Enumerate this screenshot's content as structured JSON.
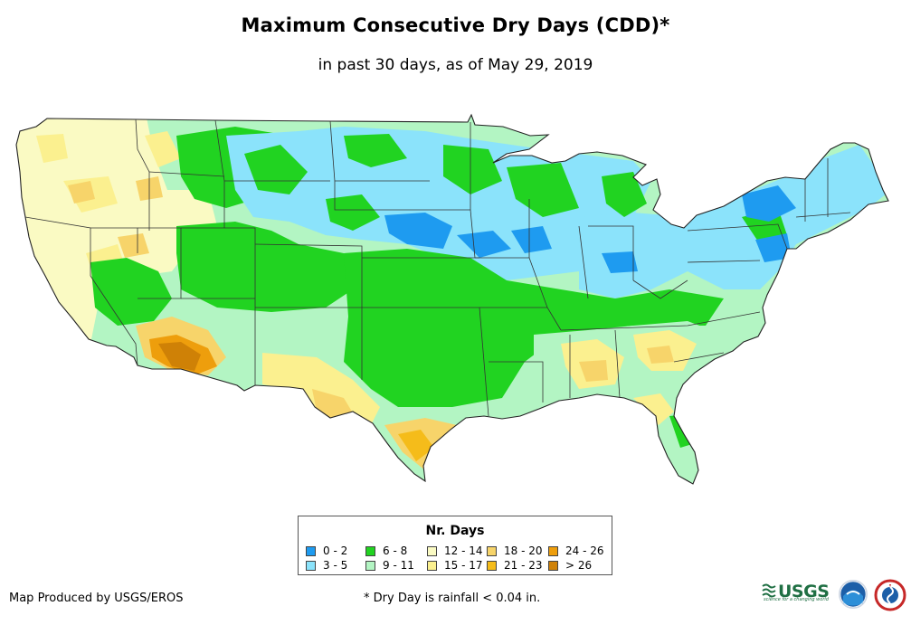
{
  "title": "Maximum Consecutive Dry Days (CDD)*",
  "subtitle": "in past 30 days, as of May 29, 2019",
  "legend": {
    "title": "Nr. Days",
    "items": [
      {
        "label": "0 - 2",
        "color": "#1e9bf0"
      },
      {
        "label": "3 - 5",
        "color": "#8be3fb"
      },
      {
        "label": "6 - 8",
        "color": "#21d321"
      },
      {
        "label": "9 - 11",
        "color": "#b3f5c3"
      },
      {
        "label": "12 - 14",
        "color": "#fafac3"
      },
      {
        "label": "15 - 17",
        "color": "#fbf08f"
      },
      {
        "label": "18 - 20",
        "color": "#f7d46a"
      },
      {
        "label": "21 - 23",
        "color": "#f5bc1a"
      },
      {
        "label": "24 - 26",
        "color": "#ee9e0c"
      },
      {
        "label": "> 26",
        "color": "#cf8106"
      }
    ]
  },
  "footer": {
    "credit": "Map Produced by USGS/EROS",
    "footnote": "* Dry Day is rainfall < 0.04 in."
  },
  "logos": {
    "usgs": "USGS",
    "usgs_tagline": "science for a changing world"
  }
}
